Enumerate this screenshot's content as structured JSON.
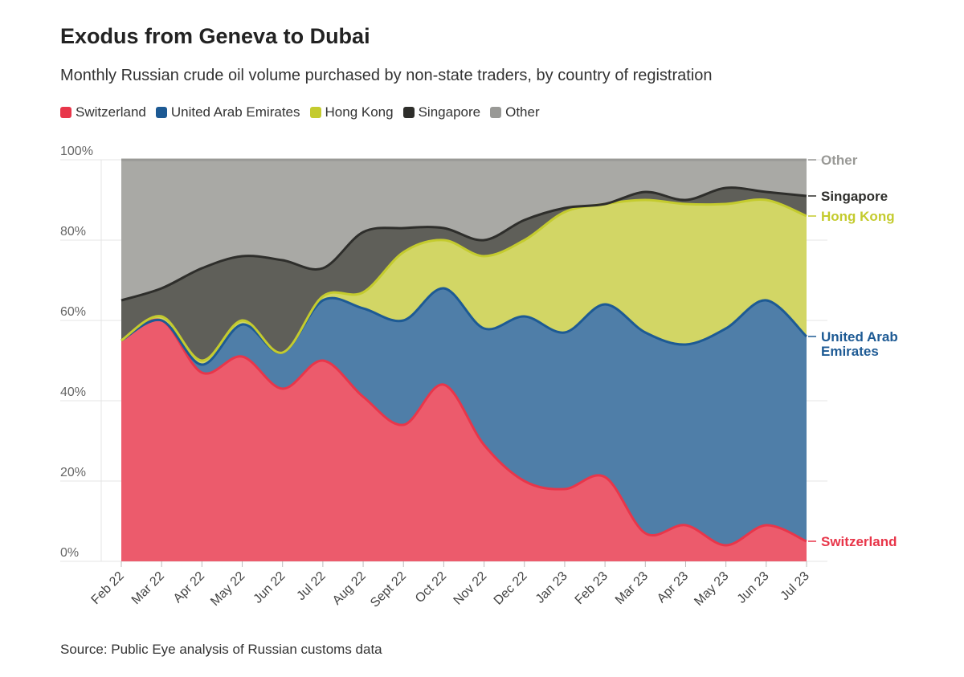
{
  "title": "Exodus from Geneva to Dubai",
  "subtitle": "Monthly Russian crude oil volume purchased by non-state traders, by country of registration",
  "source": "Source: Public Eye analysis of Russian customs data",
  "chart_data": {
    "type": "area",
    "stacked": true,
    "title": "Exodus from Geneva to Dubai",
    "xlabel": "",
    "ylabel": "",
    "ylim": [
      0,
      100
    ],
    "y_ticks": [
      "0%",
      "20%",
      "40%",
      "60%",
      "80%",
      "100%"
    ],
    "categories": [
      "Feb 22",
      "Mar 22",
      "Apr 22",
      "May 22",
      "Jun 22",
      "Jul 22",
      "Aug 22",
      "Sept 22",
      "Oct 22",
      "Nov 22",
      "Dec 22",
      "Jan 23",
      "Feb 23",
      "Mar 23",
      "Apr 23",
      "May 23",
      "Jun 23",
      "Jul 23"
    ],
    "legend_position": "top-left",
    "series": [
      {
        "name": "Switzerland",
        "label": "Switzerland",
        "color": "#e8364a",
        "fill": "#ec5b6c",
        "values": [
          55,
          60,
          47,
          51,
          43,
          50,
          41,
          34,
          44,
          29,
          20,
          18,
          21,
          7,
          9,
          4,
          9,
          5
        ]
      },
      {
        "name": "United Arab Emirates",
        "label": "United Arab Emirates",
        "color": "#1d5a94",
        "fill": "#4f7ea8",
        "values": [
          0,
          0,
          2,
          8,
          9,
          15,
          22,
          26,
          24,
          29,
          41,
          39,
          43,
          50,
          45,
          54,
          56,
          51
        ]
      },
      {
        "name": "Hong Kong",
        "label": "Hong Kong",
        "color": "#c4cb2e",
        "fill": "#d2d665",
        "values": [
          0,
          1,
          1,
          1,
          0,
          1,
          4,
          17,
          12,
          18,
          19,
          30,
          25,
          33,
          35,
          31,
          25,
          30
        ]
      },
      {
        "name": "Singapore",
        "label": "Singapore",
        "color": "#2e2e2b",
        "fill": "#5f5f59",
        "values": [
          10,
          7,
          23,
          16,
          23,
          7,
          15,
          6,
          3,
          4,
          5,
          1,
          0,
          2,
          1,
          4,
          2,
          5
        ]
      },
      {
        "name": "Other",
        "label": "Other",
        "color": "#999996",
        "fill": "#a9a9a5",
        "values": [
          35,
          32,
          27,
          24,
          25,
          27,
          18,
          17,
          17,
          20,
          15,
          12,
          11,
          8,
          10,
          7,
          8,
          9
        ]
      }
    ]
  }
}
